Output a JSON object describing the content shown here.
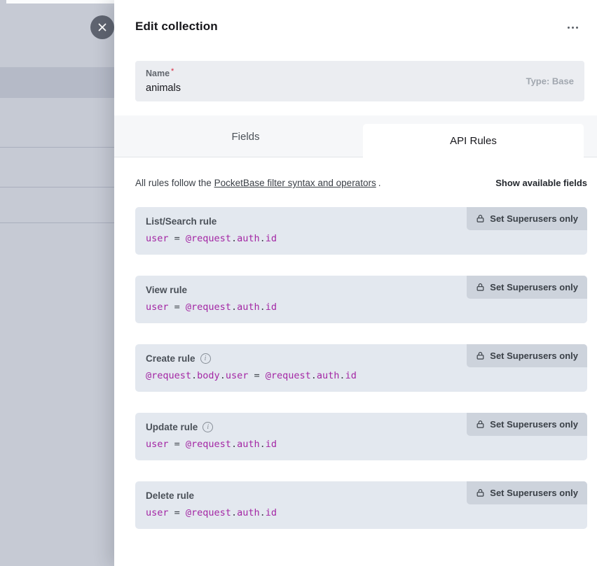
{
  "panel": {
    "title": "Edit collection",
    "name_field": {
      "label": "Name",
      "required_mark": "*",
      "value": "animals",
      "type_info": "Type: Base"
    },
    "tabs": {
      "fields": "Fields",
      "api_rules": "API Rules"
    },
    "info_bar": {
      "prefix": "All rules follow the",
      "link_text": "PocketBase filter syntax and operators",
      "suffix": ".",
      "show_fields": "Show available fields"
    },
    "lock_button_label": "Set Superusers only",
    "rules": [
      {
        "label": "List/Search rule",
        "has_info": false,
        "code": "user = @request.auth.id"
      },
      {
        "label": "View rule",
        "has_info": false,
        "code": "user = @request.auth.id"
      },
      {
        "label": "Create rule",
        "has_info": true,
        "code": "@request.body.user = @request.auth.id"
      },
      {
        "label": "Update rule",
        "has_info": true,
        "code": "user = @request.auth.id"
      },
      {
        "label": "Delete rule",
        "has_info": false,
        "code": "user = @request.auth.id"
      }
    ]
  },
  "colors": {
    "code_identifier": "#a326a4",
    "code_punctuation": "#41464d",
    "backdrop": "#c6cad4",
    "rule_box_bg": "#e3e8ef",
    "lock_button_bg": "#cdd3dc"
  }
}
